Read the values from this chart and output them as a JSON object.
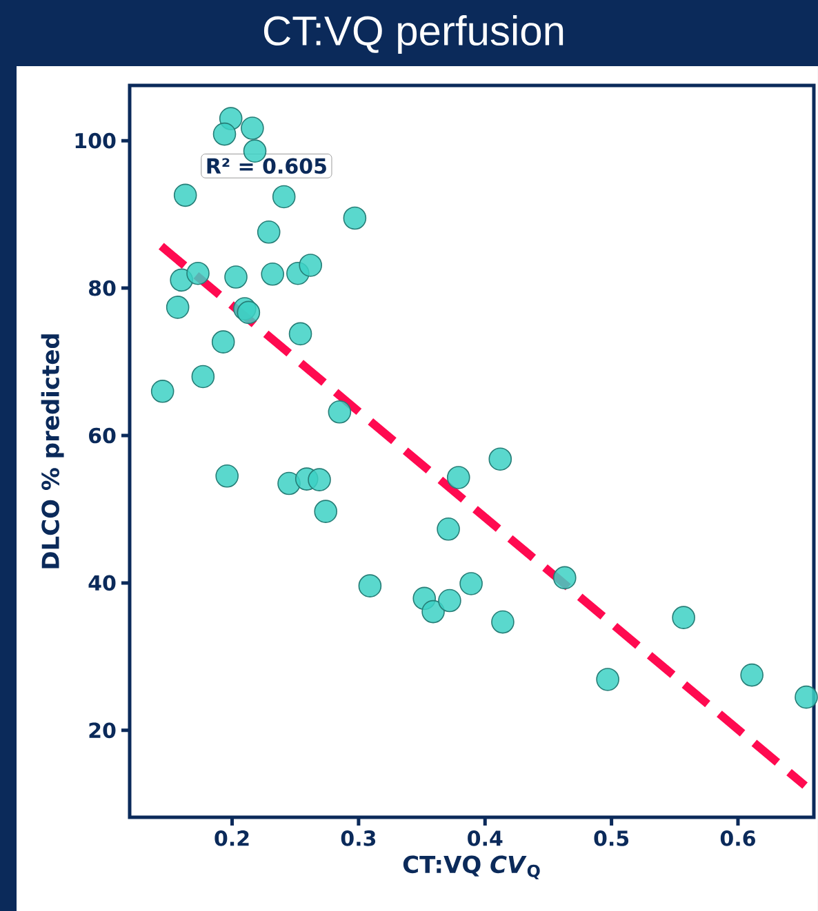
{
  "chart_data": {
    "type": "scatter",
    "title": "CT:VQ perfusion",
    "xlabel": "CT:VQ *CV*$_{Q}$",
    "ylabel": "DLCO % predicted",
    "annotations": [
      "R² = 0.605"
    ],
    "xlim": [
      0.119,
      0.66
    ],
    "ylim": [
      8.2,
      107.5
    ],
    "xticks": [
      0.2,
      0.3,
      0.4,
      0.5,
      0.6
    ],
    "yticks": [
      20,
      40,
      60,
      80,
      100
    ],
    "grid": false,
    "marker": "circle",
    "series": [
      {
        "color": "#3dd1c4",
        "x": [
          0.199,
          0.194,
          0.216,
          0.218,
          0.163,
          0.241,
          0.297,
          0.229,
          0.16,
          0.173,
          0.203,
          0.232,
          0.252,
          0.262,
          0.157,
          0.21,
          0.213,
          0.254,
          0.193,
          0.177,
          0.145,
          0.285,
          0.196,
          0.245,
          0.259,
          0.269,
          0.274,
          0.309,
          0.352,
          0.359,
          0.372,
          0.379,
          0.412,
          0.371,
          0.389,
          0.414,
          0.463,
          0.557,
          0.497,
          0.611,
          0.654
        ],
        "values": [
          103,
          100.9,
          101.7,
          98.6,
          92.6,
          92.4,
          89.5,
          87.6,
          81.1,
          82,
          81.5,
          81.9,
          82,
          83.1,
          77.4,
          77.2,
          76.7,
          73.8,
          72.7,
          68,
          66,
          63.2,
          54.5,
          53.5,
          54.1,
          54,
          49.7,
          39.6,
          37.9,
          36.1,
          37.6,
          54.3,
          56.8,
          47.3,
          39.9,
          34.7,
          40.7,
          35.3,
          26.9,
          27.5,
          24.5
        ]
      },
      {
        "type": "line",
        "color": "#ff0a50",
        "line_style": "dashed",
        "marker": "none",
        "x": [
          0.144,
          0.653
        ],
        "values": [
          85.7,
          12.5
        ]
      }
    ]
  }
}
